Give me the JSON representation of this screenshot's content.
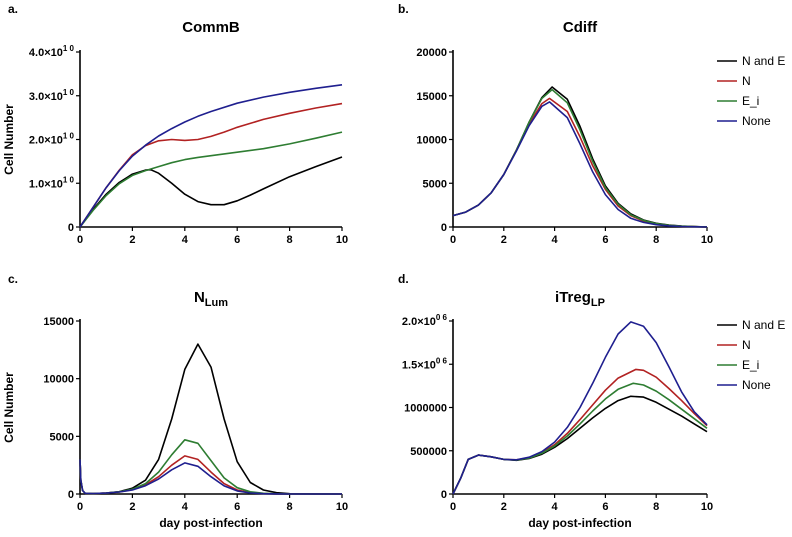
{
  "chart_data": [
    {
      "panel": "a.",
      "title": "CommB",
      "type": "line",
      "xlabel": "",
      "ylabel": "Cell Number",
      "xlim": [
        0,
        10
      ],
      "ylim": [
        0,
        40000000000
      ],
      "xticks": [
        {
          "value": 0,
          "label": "0"
        },
        {
          "value": 2,
          "label": "2"
        },
        {
          "value": 4,
          "label": "4"
        },
        {
          "value": 6,
          "label": "6"
        },
        {
          "value": 8,
          "label": "8"
        },
        {
          "value": 10,
          "label": "10"
        }
      ],
      "yticks": [
        {
          "value": 0,
          "label": "0"
        },
        {
          "value": 10000000000,
          "mantissa": "1.0",
          "exponent": "1 0"
        },
        {
          "value": 20000000000,
          "mantissa": "2.0",
          "exponent": "1 0"
        },
        {
          "value": 30000000000,
          "mantissa": "3.0",
          "exponent": "1 0"
        },
        {
          "value": 40000000000,
          "mantissa": "4.0",
          "exponent": "1 0"
        }
      ],
      "legend": null,
      "series": [
        {
          "color": "#000000",
          "x": [
            0,
            0.5,
            1,
            1.5,
            2,
            2.5,
            2.7,
            3,
            3.5,
            4,
            4.5,
            5,
            5.5,
            6,
            6.5,
            7,
            8,
            9,
            10
          ],
          "y": [
            0,
            4000000000,
            7500000000,
            10200000000,
            12100000000,
            13000000000,
            13100000000,
            12300000000,
            10000000000,
            7500000000,
            5800000000,
            5100000000,
            5100000000,
            6000000000,
            7300000000,
            8700000000,
            11500000000,
            13800000000,
            16000000000
          ]
        },
        {
          "color": "#b22222",
          "x": [
            0,
            0.5,
            1,
            1.5,
            2,
            2.5,
            3,
            3.5,
            4,
            4.5,
            5,
            5.5,
            6,
            7,
            8,
            9,
            10
          ],
          "y": [
            0,
            4500000000,
            9000000000,
            13000000000,
            16500000000,
            18600000000,
            19700000000,
            20000000000,
            19800000000,
            20000000000,
            20700000000,
            21700000000,
            22800000000,
            24600000000,
            26000000000,
            27200000000,
            28200000000
          ]
        },
        {
          "color": "#2e7d32",
          "x": [
            0,
            0.5,
            1,
            1.5,
            2,
            2.5,
            3,
            3.5,
            4,
            4.5,
            5,
            6,
            7,
            8,
            9,
            10
          ],
          "y": [
            0,
            3800000000,
            7200000000,
            9900000000,
            11800000000,
            12900000000,
            13800000000,
            14700000000,
            15400000000,
            15900000000,
            16300000000,
            17100000000,
            17900000000,
            19000000000,
            20300000000,
            21700000000
          ]
        },
        {
          "color": "#1f1f8f",
          "x": [
            0,
            0.5,
            1,
            1.5,
            2,
            2.5,
            3,
            3.5,
            4,
            4.5,
            5,
            6,
            7,
            8,
            9,
            10
          ],
          "y": [
            0,
            4500000000,
            9000000000,
            12900000000,
            16200000000,
            18700000000,
            20800000000,
            22500000000,
            24000000000,
            25300000000,
            26400000000,
            28300000000,
            29700000000,
            30800000000,
            31700000000,
            32500000000
          ]
        }
      ]
    },
    {
      "panel": "b.",
      "title": "Cdiff",
      "type": "line",
      "xlabel": "",
      "ylabel": "",
      "xlim": [
        0,
        10
      ],
      "ylim": [
        0,
        20000
      ],
      "xticks": [
        {
          "value": 0,
          "label": "0"
        },
        {
          "value": 2,
          "label": "2"
        },
        {
          "value": 4,
          "label": "4"
        },
        {
          "value": 6,
          "label": "6"
        },
        {
          "value": 8,
          "label": "8"
        },
        {
          "value": 10,
          "label": "10"
        }
      ],
      "yticks": [
        {
          "value": 0,
          "label": "0"
        },
        {
          "value": 5000,
          "label": "5000"
        },
        {
          "value": 10000,
          "label": "10000"
        },
        {
          "value": 15000,
          "label": "15000"
        },
        {
          "value": 20000,
          "label": "20000"
        }
      ],
      "legend": {
        "position": "right",
        "labels": [
          "N and E",
          "N",
          "E_i",
          "None"
        ]
      },
      "series": [
        {
          "color": "#000000",
          "x": [
            0,
            0.5,
            1,
            1.5,
            2,
            2.5,
            3,
            3.5,
            3.9,
            4.5,
            5,
            5.5,
            6,
            6.5,
            7,
            7.5,
            8,
            8.5,
            9,
            10
          ],
          "y": [
            1300,
            1700,
            2500,
            3900,
            6000,
            8800,
            12000,
            14800,
            16000,
            14600,
            11500,
            7800,
            4700,
            2700,
            1500,
            800,
            420,
            220,
            100,
            0
          ]
        },
        {
          "color": "#b22222",
          "x": [
            0,
            0.5,
            1,
            1.5,
            2,
            2.5,
            3,
            3.5,
            3.8,
            4.5,
            5,
            5.5,
            6,
            6.5,
            7,
            7.5,
            8,
            8.5,
            9,
            10
          ],
          "y": [
            1300,
            1700,
            2500,
            3900,
            6000,
            8800,
            11800,
            14100,
            14700,
            13200,
            10300,
            7000,
            4300,
            2400,
            1300,
            680,
            350,
            180,
            80,
            0
          ]
        },
        {
          "color": "#2e7d32",
          "x": [
            0,
            0.5,
            1,
            1.5,
            2,
            2.5,
            3,
            3.5,
            3.9,
            4.5,
            5,
            5.5,
            6,
            6.5,
            7,
            7.5,
            8,
            8.5,
            9,
            10
          ],
          "y": [
            1300,
            1700,
            2500,
            3900,
            6000,
            8800,
            12000,
            14700,
            15700,
            14200,
            11100,
            7500,
            4500,
            2600,
            1400,
            750,
            390,
            200,
            90,
            0
          ]
        },
        {
          "color": "#1f1f8f",
          "x": [
            0,
            0.5,
            1,
            1.5,
            2,
            2.5,
            3,
            3.5,
            3.8,
            4.5,
            5,
            5.5,
            6,
            6.5,
            7,
            7.5,
            8,
            8.5,
            9,
            10
          ],
          "y": [
            1300,
            1700,
            2500,
            3900,
            6000,
            8700,
            11600,
            13800,
            14300,
            12500,
            9500,
            6300,
            3700,
            2000,
            1000,
            520,
            260,
            130,
            60,
            0
          ]
        }
      ]
    },
    {
      "panel": "c.",
      "title": "N",
      "title_sub": "Lum",
      "type": "line",
      "xlabel": "day post-infection",
      "ylabel": "Cell Number",
      "xlim": [
        0,
        10
      ],
      "ylim": [
        0,
        15000
      ],
      "xticks": [
        {
          "value": 0,
          "label": "0"
        },
        {
          "value": 2,
          "label": "2"
        },
        {
          "value": 4,
          "label": "4"
        },
        {
          "value": 6,
          "label": "6"
        },
        {
          "value": 8,
          "label": "8"
        },
        {
          "value": 10,
          "label": "10"
        }
      ],
      "yticks": [
        {
          "value": 0,
          "label": "0"
        },
        {
          "value": 5000,
          "label": "5000"
        },
        {
          "value": 10000,
          "label": "10000"
        },
        {
          "value": 15000,
          "label": "15000"
        }
      ],
      "legend": null,
      "series": [
        {
          "color": "#000000",
          "x": [
            0,
            0.03,
            0.1,
            0.2,
            0.5,
            1,
            1.5,
            2,
            2.5,
            3,
            3.5,
            4,
            4.5,
            5,
            5.5,
            6,
            6.5,
            7,
            7.5,
            8,
            9,
            10
          ],
          "y": [
            3000,
            1200,
            300,
            60,
            40,
            80,
            200,
            500,
            1200,
            3000,
            6500,
            10800,
            13000,
            11000,
            6500,
            2800,
            1000,
            350,
            110,
            30,
            5,
            0
          ]
        },
        {
          "color": "#b22222",
          "x": [
            0,
            0.03,
            0.1,
            0.2,
            0.5,
            1,
            1.5,
            2,
            2.5,
            3,
            3.5,
            4,
            4.5,
            5,
            5.5,
            6,
            6.5,
            7,
            7.5,
            8,
            9,
            10
          ],
          "y": [
            3000,
            1200,
            300,
            60,
            40,
            80,
            180,
            380,
            800,
            1500,
            2500,
            3300,
            3000,
            1900,
            900,
            350,
            120,
            40,
            10,
            3,
            0,
            0
          ]
        },
        {
          "color": "#2e7d32",
          "x": [
            0,
            0.03,
            0.1,
            0.2,
            0.5,
            1,
            1.5,
            2,
            2.5,
            3,
            3.5,
            4,
            4.5,
            5,
            5.5,
            6,
            6.5,
            7,
            7.5,
            8,
            9,
            10
          ],
          "y": [
            3000,
            1200,
            300,
            60,
            40,
            80,
            190,
            420,
            900,
            1900,
            3400,
            4700,
            4400,
            2900,
            1400,
            550,
            190,
            60,
            15,
            4,
            0,
            0
          ]
        },
        {
          "color": "#1f1f8f",
          "x": [
            0,
            0.03,
            0.1,
            0.2,
            0.5,
            1,
            1.5,
            2,
            2.5,
            3,
            3.5,
            4,
            4.5,
            5,
            5.5,
            6,
            6.5,
            7,
            7.5,
            8,
            9,
            10
          ],
          "y": [
            3000,
            1200,
            300,
            60,
            40,
            80,
            170,
            350,
            720,
            1300,
            2100,
            2700,
            2400,
            1500,
            700,
            270,
            90,
            30,
            8,
            2,
            0,
            0
          ]
        }
      ]
    },
    {
      "panel": "d.",
      "title": "iTreg",
      "title_sub": "LP",
      "type": "line",
      "xlabel": "day post-infection",
      "ylabel": "",
      "xlim": [
        0,
        10
      ],
      "ylim": [
        0,
        2000000
      ],
      "xticks": [
        {
          "value": 0,
          "label": "0"
        },
        {
          "value": 2,
          "label": "2"
        },
        {
          "value": 4,
          "label": "4"
        },
        {
          "value": 6,
          "label": "6"
        },
        {
          "value": 8,
          "label": "8"
        },
        {
          "value": 10,
          "label": "10"
        }
      ],
      "yticks": [
        {
          "value": 0,
          "label": "0"
        },
        {
          "value": 500000,
          "label": "500000"
        },
        {
          "value": 1000000,
          "label": "1000000"
        },
        {
          "value": 1500000,
          "mantissa": "1.5",
          "exponent": "0 6"
        },
        {
          "value": 2000000,
          "mantissa": "2.0",
          "exponent": "0 6"
        }
      ],
      "legend": {
        "position": "right",
        "labels": [
          "N and E",
          "N",
          "E_i",
          "None"
        ]
      },
      "series": [
        {
          "color": "#000000",
          "x": [
            0,
            0.3,
            0.6,
            1,
            1.5,
            2,
            2.5,
            3,
            3.5,
            4,
            4.5,
            5,
            5.5,
            6,
            6.5,
            7,
            7.5,
            8,
            8.5,
            9,
            9.5,
            10
          ],
          "y": [
            0,
            180000,
            400000,
            450000,
            430000,
            400000,
            390000,
            410000,
            460000,
            540000,
            640000,
            760000,
            880000,
            990000,
            1080000,
            1130000,
            1120000,
            1060000,
            980000,
            900000,
            810000,
            720000
          ]
        },
        {
          "color": "#b22222",
          "x": [
            0,
            0.3,
            0.6,
            1,
            1.5,
            2,
            2.5,
            3,
            3.5,
            4,
            4.5,
            5,
            5.5,
            6,
            6.5,
            7.2,
            7.5,
            8,
            8.5,
            9,
            9.5,
            10
          ],
          "y": [
            0,
            180000,
            400000,
            450000,
            430000,
            400000,
            395000,
            420000,
            480000,
            570000,
            700000,
            860000,
            1030000,
            1200000,
            1340000,
            1440000,
            1430000,
            1350000,
            1220000,
            1080000,
            930000,
            790000
          ]
        },
        {
          "color": "#2e7d32",
          "x": [
            0,
            0.3,
            0.6,
            1,
            1.5,
            2,
            2.5,
            3,
            3.5,
            4,
            4.5,
            5,
            5.5,
            6,
            6.5,
            7.1,
            7.5,
            8,
            8.5,
            9,
            9.5,
            10
          ],
          "y": [
            0,
            180000,
            400000,
            450000,
            430000,
            400000,
            392000,
            415000,
            470000,
            555000,
            670000,
            810000,
            960000,
            1100000,
            1210000,
            1280000,
            1260000,
            1190000,
            1090000,
            980000,
            870000,
            760000
          ]
        },
        {
          "color": "#1f1f8f",
          "x": [
            0,
            0.3,
            0.6,
            1,
            1.5,
            2,
            2.5,
            3,
            3.5,
            4,
            4.5,
            5,
            5.5,
            6,
            6.5,
            7,
            7.5,
            8,
            8.5,
            9,
            9.5,
            10
          ],
          "y": [
            0,
            180000,
            400000,
            450000,
            430000,
            400000,
            395000,
            425000,
            490000,
            600000,
            770000,
            1000000,
            1280000,
            1580000,
            1850000,
            1990000,
            1940000,
            1750000,
            1470000,
            1180000,
            950000,
            800000
          ]
        }
      ]
    }
  ]
}
